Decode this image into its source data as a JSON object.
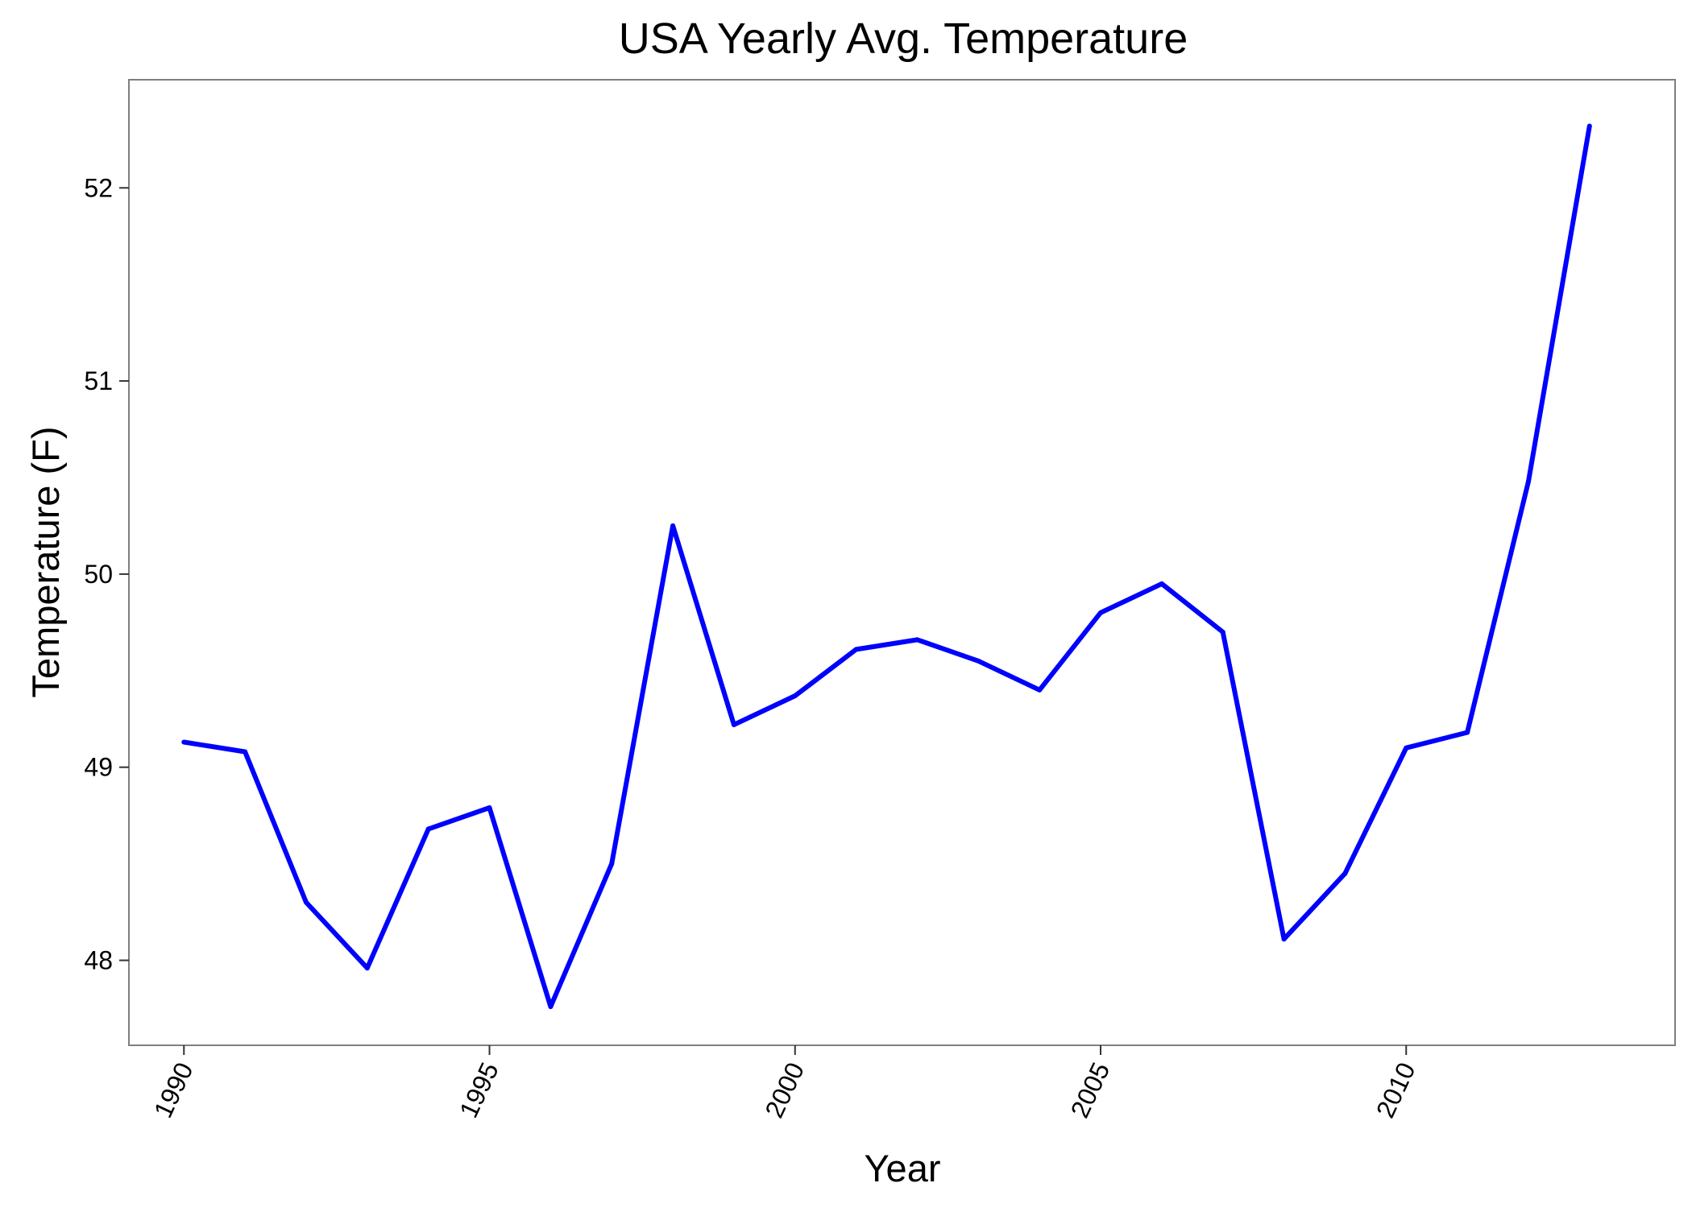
{
  "chart_data": {
    "type": "line",
    "title": "USA Yearly Avg. Temperature",
    "xlabel": "Year",
    "ylabel": "Temperature (F)",
    "x": [
      1990,
      1991,
      1992,
      1993,
      1994,
      1995,
      1996,
      1997,
      1998,
      1999,
      2000,
      2001,
      2002,
      2003,
      2004,
      2005,
      2006,
      2007,
      2008,
      2009,
      2010,
      2011,
      2012,
      2013
    ],
    "series": [
      {
        "values": [
          49.13,
          49.08,
          48.3,
          47.96,
          48.68,
          48.79,
          47.76,
          48.5,
          50.25,
          49.22,
          49.37,
          49.61,
          49.66,
          49.55,
          49.4,
          49.8,
          49.95,
          49.7,
          48.11,
          48.45,
          49.1,
          49.18,
          50.48,
          52.32
        ],
        "color": "#0000ff"
      }
    ],
    "xlim": [
      1989.1,
      2014.4
    ],
    "ylim": [
      47.56,
      52.56
    ],
    "x_ticks": [
      "1990",
      "1995",
      "2000",
      "2005",
      "2010"
    ],
    "x_tick_values": [
      1990,
      1995,
      2000,
      2005,
      2010
    ],
    "y_ticks": [
      "48",
      "49",
      "50",
      "51",
      "52"
    ],
    "y_tick_values": [
      48,
      49,
      50,
      51,
      52
    ],
    "x_tick_label_rotation": "-65deg",
    "grid": false,
    "legend": "none",
    "panel_border_color": "#7f7f7f",
    "axis_color": "#333333"
  }
}
